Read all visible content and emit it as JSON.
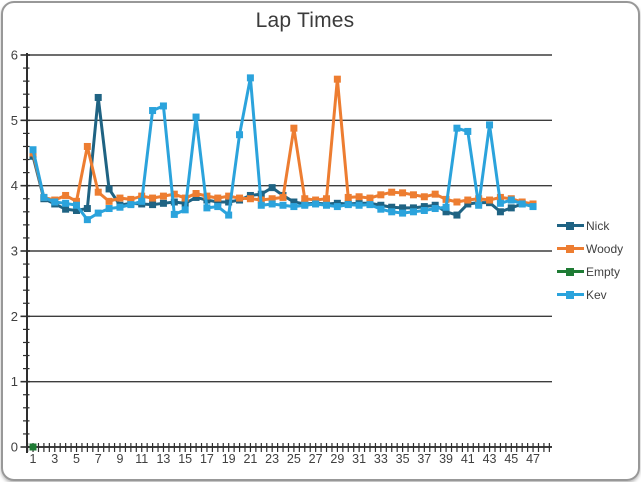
{
  "title": "Lap Times",
  "chart_data": {
    "type": "line",
    "title": "Lap Times",
    "xlabel": "",
    "ylabel": "",
    "ylim": [
      0,
      6
    ],
    "y_tick_labels": [
      "0",
      "1",
      "2",
      "3",
      "4",
      "5",
      "6"
    ],
    "y_minor_step": 0.2,
    "grid": "horizontal-major",
    "legend_position": "right",
    "x": [
      1,
      2,
      3,
      4,
      5,
      6,
      7,
      8,
      9,
      10,
      11,
      12,
      13,
      14,
      15,
      16,
      17,
      18,
      19,
      20,
      21,
      22,
      23,
      24,
      25,
      26,
      27,
      28,
      29,
      30,
      31,
      32,
      33,
      34,
      35,
      36,
      37,
      38,
      39,
      40,
      41,
      42,
      43,
      44,
      45,
      46,
      47
    ],
    "x_tick_labels": [
      "1",
      "3",
      "5",
      "7",
      "9",
      "11",
      "13",
      "15",
      "17",
      "19",
      "21",
      "23",
      "25",
      "27",
      "29",
      "31",
      "33",
      "35",
      "37",
      "39",
      "41",
      "43",
      "45",
      "47"
    ],
    "series": [
      {
        "name": "Nick",
        "color": "#1F6383",
        "values": [
          4.45,
          3.8,
          3.72,
          3.64,
          3.62,
          3.65,
          5.35,
          3.95,
          3.7,
          3.73,
          3.72,
          3.71,
          3.73,
          3.75,
          3.73,
          3.82,
          3.78,
          3.75,
          3.75,
          3.78,
          3.85,
          3.87,
          3.97,
          3.85,
          3.75,
          3.72,
          3.73,
          3.72,
          3.73,
          3.72,
          3.73,
          3.73,
          3.7,
          3.67,
          3.66,
          3.66,
          3.68,
          3.7,
          3.6,
          3.55,
          3.72,
          3.74,
          3.74,
          3.6,
          3.66,
          3.72,
          3.7
        ]
      },
      {
        "name": "Woody",
        "color": "#ED7D31",
        "values": [
          4.5,
          3.82,
          3.78,
          3.85,
          3.76,
          4.6,
          3.9,
          3.76,
          3.81,
          3.79,
          3.84,
          3.81,
          3.84,
          3.87,
          3.81,
          3.88,
          3.84,
          3.81,
          3.84,
          3.81,
          3.8,
          3.78,
          3.8,
          3.82,
          4.88,
          3.8,
          3.78,
          3.8,
          5.63,
          3.82,
          3.83,
          3.81,
          3.86,
          3.9,
          3.89,
          3.86,
          3.83,
          3.87,
          3.79,
          3.75,
          3.78,
          3.8,
          3.78,
          3.82,
          3.8,
          3.75,
          3.72
        ]
      },
      {
        "name": "Empty",
        "color": "#1E7B34",
        "x": [
          1
        ],
        "values": [
          0
        ]
      },
      {
        "name": "Kev",
        "color": "#2BA3DC",
        "values": [
          4.55,
          3.82,
          3.75,
          3.73,
          3.7,
          3.48,
          3.58,
          3.65,
          3.67,
          3.71,
          3.76,
          5.15,
          5.22,
          3.56,
          3.63,
          5.05,
          3.66,
          3.68,
          3.55,
          4.78,
          5.65,
          3.7,
          3.72,
          3.7,
          3.68,
          3.7,
          3.72,
          3.7,
          3.68,
          3.71,
          3.7,
          3.71,
          3.64,
          3.6,
          3.58,
          3.6,
          3.62,
          3.65,
          3.67,
          4.88,
          4.83,
          3.7,
          4.93,
          3.73,
          3.78,
          3.72,
          3.68
        ]
      }
    ]
  }
}
